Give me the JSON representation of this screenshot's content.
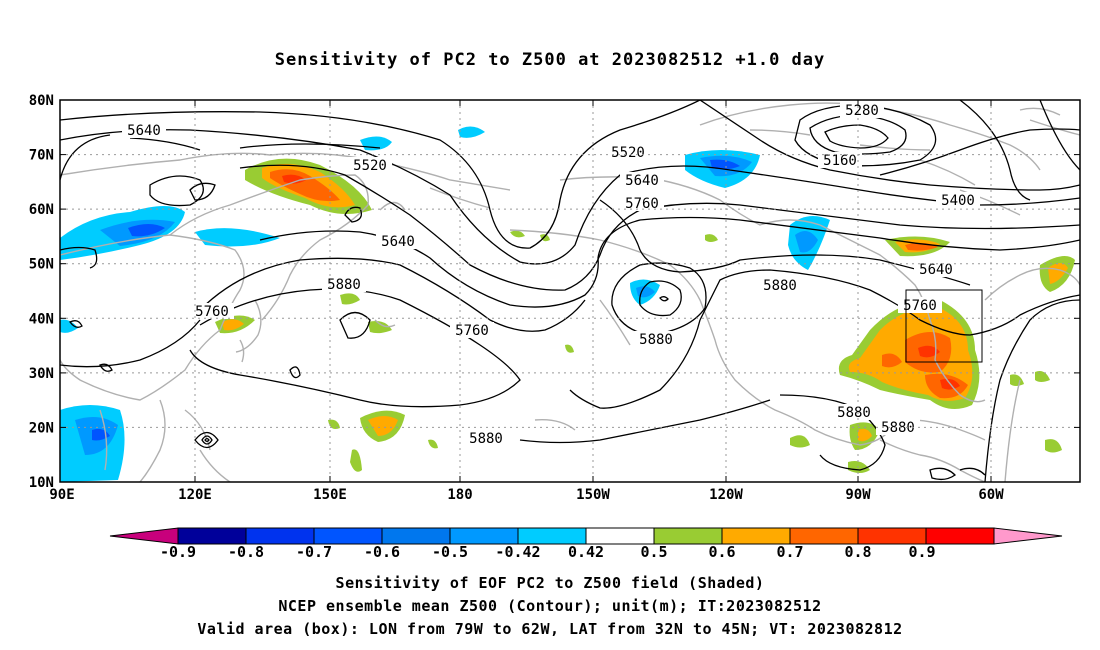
{
  "title": "Sensitivity of PC2 to Z500 at 2023082512 +1.0 day",
  "axes": {
    "lat_labels": [
      "80N",
      "70N",
      "60N",
      "50N",
      "40N",
      "30N",
      "20N",
      "10N"
    ],
    "lon_labels": [
      "90E",
      "120E",
      "150E",
      "180",
      "150W",
      "120W",
      "90W",
      "60W"
    ]
  },
  "contour_labels": [
    "5640",
    "5520",
    "5280",
    "5160",
    "5400",
    "5520",
    "5640",
    "5760",
    "5640",
    "5640",
    "5880",
    "5760",
    "5760",
    "5880",
    "5760",
    "5880",
    "5880",
    "5880"
  ],
  "colorbar": {
    "labels": [
      "-0.9",
      "-0.8",
      "-0.7",
      "-0.6",
      "-0.5",
      "-0.42",
      "0.42",
      "0.5",
      "0.6",
      "0.7",
      "0.8",
      "0.9"
    ],
    "colors": [
      "#c8007c",
      "#00009a",
      "#0033ee",
      "#0055ff",
      "#0077ee",
      "#0099ff",
      "#00ccff",
      "#ffffff",
      "#99cc33",
      "#ffaa00",
      "#ff6600",
      "#ff3300",
      "#ff0000",
      "#ff99cc"
    ]
  },
  "footer": {
    "line1": "Sensitivity of EOF PC2 to Z500 field (Shaded)",
    "line2": "NCEP ensemble mean Z500 (Contour); unit(m); IT:2023082512",
    "line3": "Valid area (box): LON from 79W to 62W, LAT from 32N to 45N; VT: 2023082812"
  },
  "valid_box": {
    "lon": [
      "79W",
      "62W"
    ],
    "lat": [
      "32N",
      "45N"
    ]
  }
}
